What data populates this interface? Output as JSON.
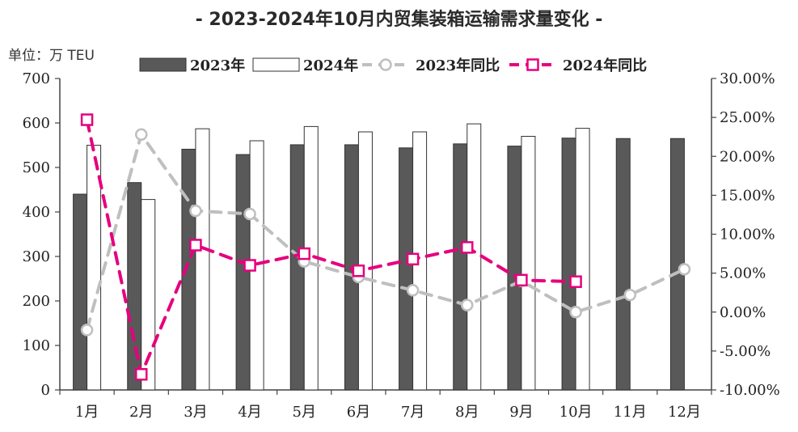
{
  "chart_data": {
    "type": "bar",
    "title": "- 2023-2024年10月内贸集装箱运输需求量变化 -",
    "unit_label": "单位：万 TEU",
    "categories": [
      "1月",
      "2月",
      "3月",
      "4月",
      "5月",
      "6月",
      "7月",
      "8月",
      "9月",
      "10月",
      "11月",
      "12月"
    ],
    "series": [
      {
        "name": "2023年",
        "kind": "bar",
        "axis": "left",
        "color": "#595959",
        "values": [
          440,
          466,
          541,
          529,
          551,
          551,
          544,
          553,
          548,
          566,
          565,
          565
        ]
      },
      {
        "name": "2024年",
        "kind": "bar",
        "axis": "left",
        "color": "#ffffff",
        "values": [
          550,
          428,
          587,
          560,
          592,
          580,
          580,
          598,
          570,
          588,
          null,
          null
        ]
      },
      {
        "name": "2023年同比",
        "kind": "line",
        "axis": "right",
        "color": "#bfbfbf",
        "values": [
          -2.3,
          22.8,
          13.0,
          12.6,
          6.5,
          4.5,
          2.8,
          0.9,
          4.0,
          0.0,
          2.2,
          5.5
        ]
      },
      {
        "name": "2024年同比",
        "kind": "line",
        "axis": "right",
        "color": "#e6007e",
        "values": [
          24.7,
          -8.0,
          8.6,
          6.0,
          7.5,
          5.3,
          6.8,
          8.3,
          4.1,
          3.9,
          null,
          null
        ]
      }
    ],
    "y_left": {
      "min": 0,
      "max": 700,
      "ticks": [
        "0",
        "100",
        "200",
        "300",
        "400",
        "500",
        "600",
        "700"
      ]
    },
    "y_right": {
      "min": -10,
      "max": 30,
      "ticks": [
        "-10.00%",
        "-5.00%",
        "0.00%",
        "5.00%",
        "10.00%",
        "15.00%",
        "20.00%",
        "25.00%",
        "30.00%"
      ]
    },
    "legend_position": "top",
    "grid": false
  }
}
